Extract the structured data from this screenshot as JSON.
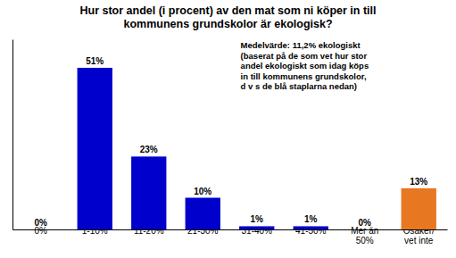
{
  "chart_data": {
    "type": "bar",
    "title": "Hur stor andel (i procent) av den mat som ni köper in till\nkommunens grundskolor är ekologisk?",
    "categories": [
      "0%",
      "1-10%",
      "11-20%",
      "21-30%",
      "31-40%",
      "41-50%",
      "Mer än\n50%",
      "Osäker/\nvet inte"
    ],
    "values": [
      0,
      51,
      23,
      10,
      1,
      1,
      0,
      13
    ],
    "value_labels": [
      "0%",
      "51%",
      "23%",
      "10%",
      "1%",
      "1%",
      "0%",
      "13%"
    ],
    "colors": [
      "#0000cc",
      "#0000cc",
      "#0000cc",
      "#0000cc",
      "#0000cc",
      "#0000cc",
      "#0000cc",
      "#e87722"
    ],
    "data_labels": true,
    "annotations": [
      "Medelvärde: 11,2% ekologiskt\n(baserat på de som vet hur stor\nandel ekologiskt som idag köps\nin till kommunens grundskolor,\nd v s de blå staplarna nedan)"
    ],
    "ylim": [
      0,
      60
    ],
    "tick_labels": "x"
  }
}
